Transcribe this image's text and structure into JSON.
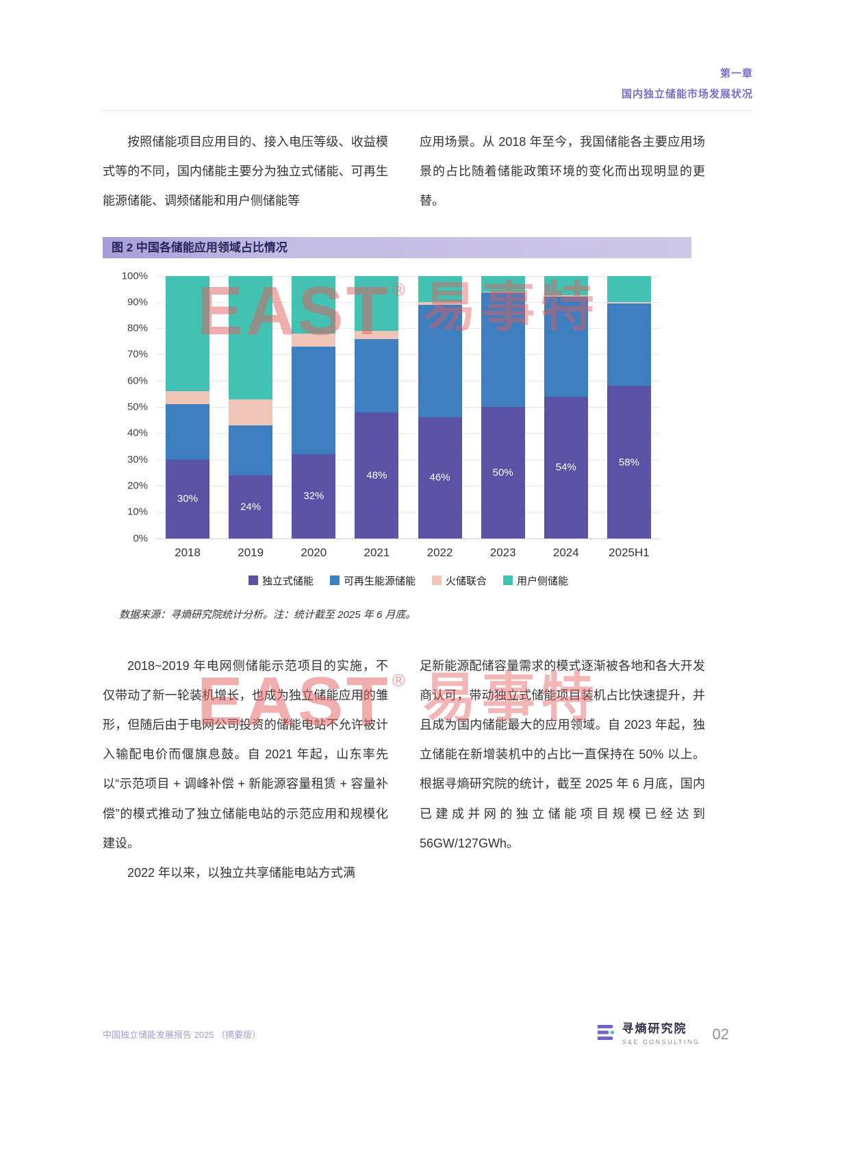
{
  "header": {
    "chapter": "第一章",
    "chapter_title": "国内独立储能市场发展状况"
  },
  "intro": {
    "left": "按照储能项目应用目的、接入电压等级、收益模式等的不同，国内储能主要分为独立式储能、可再生能源储能、调频储能和用户侧储能等",
    "right": "应用场景。从 2018 年至今，我国储能各主要应用场景的占比随着储能政策环境的变化而出现明显的更替。"
  },
  "figure": {
    "title": "图 2 中国各储能应用领域占比情况",
    "source_note": "数据来源：寻熵研究院统计分析。注：统计截至 2025 年 6 月底。"
  },
  "chart_data": {
    "type": "bar",
    "stacked": true,
    "percent": true,
    "title": "中国各储能应用领域占比情况",
    "categories": [
      "2018",
      "2019",
      "2020",
      "2021",
      "2022",
      "2023",
      "2024",
      "2025H1"
    ],
    "series": [
      {
        "name": "独立式储能",
        "color": "#5a53a5",
        "values": [
          30,
          24,
          32,
          48,
          46,
          50,
          54,
          58
        ],
        "labels": [
          "30%",
          "24%",
          "32%",
          "48%",
          "46%",
          "50%",
          "54%",
          "58%"
        ]
      },
      {
        "name": "可再生能源储能",
        "color": "#3c7ec0",
        "values": [
          21,
          19,
          41,
          28,
          43,
          43.5,
          38,
          31.5
        ]
      },
      {
        "name": "火储联合",
        "color": "#eec5b6",
        "values": [
          5,
          10,
          5,
          3,
          1,
          0.5,
          0.5,
          0.5
        ]
      },
      {
        "name": "用户侧储能",
        "color": "#41c2b3",
        "values": [
          44,
          47,
          22,
          21,
          10,
          6,
          7.5,
          10
        ]
      }
    ],
    "y_ticks": [
      "100%",
      "90%",
      "80%",
      "70%",
      "60%",
      "50%",
      "40%",
      "30%",
      "20%",
      "10%",
      "0%"
    ],
    "ylim": [
      0,
      100
    ],
    "grid": true,
    "legend_position": "bottom"
  },
  "body": {
    "left_p1": "2018~2019 年电网侧储能示范项目的实施，不仅带动了新一轮装机增长，也成为独立储能应用的雏形，但随后由于电网公司投资的储能电站不允许被计入输配电价而偃旗息鼓。自 2021 年起，山东率先以“示范项目 + 调峰补偿 + 新能源容量租赁 + 容量补偿”的模式推动了独立储能电站的示范应用和规模化建设。",
    "left_p2": "2022 年以来，以独立共享储能电站方式满",
    "right_p1": "足新能源配储容量需求的模式逐渐被各地和各大开发商认可，带动独立式储能项目装机占比快速提升，并且成为国内储能最大的应用领域。自 2023 年起，独立储能在新增装机中的占比一直保持在 50% 以上。根据寻熵研究院的统计，截至 2025 年 6 月底，国内已建成并网的独立储能项目规模已经达到 56GW/127GWh。"
  },
  "watermark": {
    "latin": "EAST",
    "reg": "®",
    "cjk": "易事特"
  },
  "footer": {
    "left": "中国独立储能发展报告 2025 （摘要版）",
    "brand_name": "寻熵研究院",
    "brand_sub": "S&E CONSULTING",
    "page": "02"
  }
}
